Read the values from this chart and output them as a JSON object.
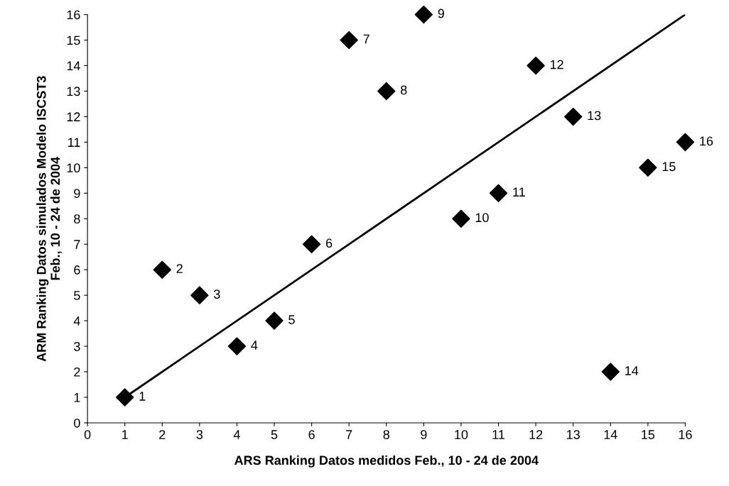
{
  "chart_data": {
    "type": "scatter",
    "xlabel": "ARS Ranking Datos medidos Feb., 10 - 24 de 2004",
    "ylabel": "ARM Ranking Datos simulados Modelo ISCST3\nFeb., 10 - 24 de 2004",
    "xlim": [
      0,
      16
    ],
    "ylim": [
      0,
      16
    ],
    "xticks": [
      0,
      1,
      2,
      3,
      4,
      5,
      6,
      7,
      8,
      9,
      10,
      11,
      12,
      13,
      14,
      15,
      16
    ],
    "yticks": [
      0,
      1,
      2,
      3,
      4,
      5,
      6,
      7,
      8,
      9,
      10,
      11,
      12,
      13,
      14,
      15,
      16
    ],
    "grid": false,
    "legend": false,
    "series": [
      {
        "color": "#000000",
        "marker": "diamond",
        "x": [
          1,
          2,
          3,
          4,
          5,
          6,
          7,
          8,
          9,
          10,
          11,
          12,
          13,
          14,
          15,
          16
        ],
        "values": [
          1,
          6,
          5,
          3,
          4,
          7,
          15,
          13,
          16,
          8,
          9,
          14,
          12,
          2,
          10,
          11
        ]
      },
      {
        "type": "line",
        "color": "#000000",
        "marker": "none",
        "x": [
          1,
          16
        ],
        "values": [
          1,
          16
        ]
      }
    ],
    "annotations": [
      {
        "text": "1",
        "x": 1,
        "y": 1
      },
      {
        "text": "2",
        "x": 2,
        "y": 6
      },
      {
        "text": "3",
        "x": 3,
        "y": 5
      },
      {
        "text": "4",
        "x": 4,
        "y": 3
      },
      {
        "text": "5",
        "x": 5,
        "y": 4
      },
      {
        "text": "6",
        "x": 6,
        "y": 7
      },
      {
        "text": "7",
        "x": 7,
        "y": 15
      },
      {
        "text": "8",
        "x": 8,
        "y": 13
      },
      {
        "text": "9",
        "x": 9,
        "y": 16
      },
      {
        "text": "10",
        "x": 10,
        "y": 8
      },
      {
        "text": "11",
        "x": 11,
        "y": 9
      },
      {
        "text": "12",
        "x": 12,
        "y": 14
      },
      {
        "text": "13",
        "x": 13,
        "y": 12
      },
      {
        "text": "14",
        "x": 14,
        "y": 2
      },
      {
        "text": "15",
        "x": 15,
        "y": 10
      },
      {
        "text": "16",
        "x": 16,
        "y": 11
      }
    ]
  }
}
